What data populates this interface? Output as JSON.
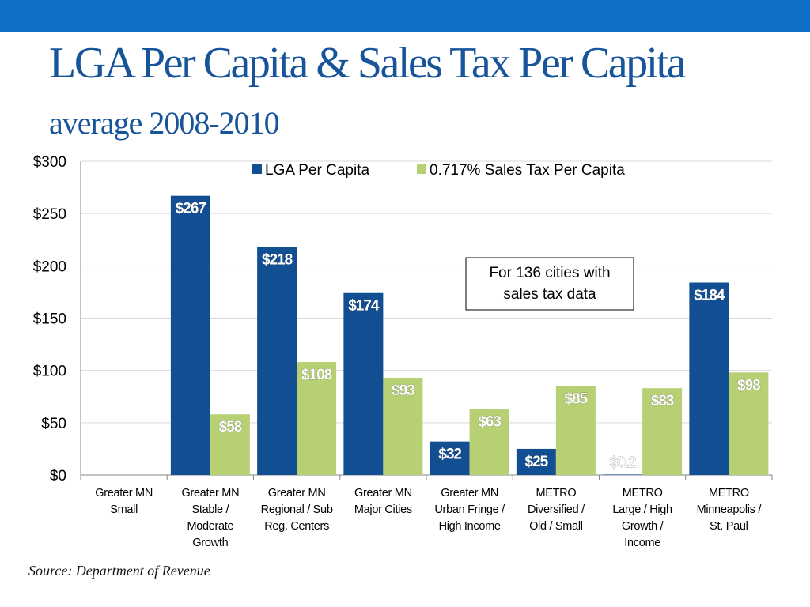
{
  "slide": {
    "title": "LGA Per Capita & Sales Tax Per Capita",
    "subtitle": "average 2008-2010",
    "source": "Source: Department of Revenue",
    "accent_color": "#0f6fc6"
  },
  "chart_data": {
    "type": "bar",
    "categories": [
      [
        "Greater MN",
        "Small"
      ],
      [
        "Greater MN",
        "Stable /",
        "Moderate",
        "Growth"
      ],
      [
        "Greater MN",
        "Regional / Sub",
        "Reg. Centers"
      ],
      [
        "Greater MN",
        "Major Cities"
      ],
      [
        "Greater MN",
        "Urban Fringe /",
        "High Income"
      ],
      [
        "METRO",
        "Diversified /",
        "Old / Small"
      ],
      [
        "METRO",
        "Large / High",
        "Growth /",
        "Income"
      ],
      [
        "METRO",
        "Minneapolis /",
        "St. Paul"
      ]
    ],
    "series": [
      {
        "name": "LGA Per Capita",
        "color": "#114e92",
        "values": [
          null,
          267,
          218,
          174,
          32,
          25,
          0.2,
          184
        ],
        "labels": [
          "",
          "$267",
          "$218",
          "$174",
          "$32",
          "$25",
          "$0.2",
          "$184"
        ]
      },
      {
        "name": "0.717% Sales Tax Per Capita",
        "color": "#b6d073",
        "values": [
          null,
          58,
          108,
          93,
          63,
          85,
          83,
          98
        ],
        "labels": [
          "",
          "$58",
          "$108",
          "$93",
          "$63",
          "$85",
          "$83",
          "$98"
        ]
      }
    ],
    "yticks": [
      "$0",
      "$50",
      "$100",
      "$150",
      "$200",
      "$250",
      "$300"
    ],
    "ylim": [
      0,
      300
    ],
    "grid": true,
    "legend": "top",
    "annotation": [
      "For 136 cities with",
      "sales tax data"
    ]
  }
}
